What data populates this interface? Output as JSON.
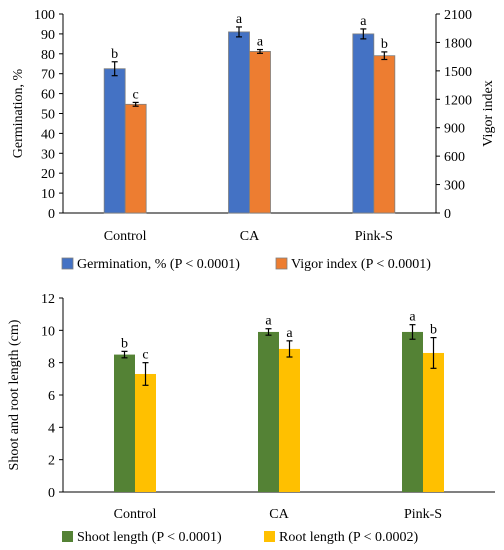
{
  "chart_data": [
    {
      "type": "bar",
      "categories": [
        "Control",
        "CA",
        "Pink-S"
      ],
      "ylabel": "Germination, %",
      "y2label": "Vigor index",
      "ylim": [
        0,
        100
      ],
      "y2lim": [
        0,
        2100
      ],
      "yticks": [
        "0",
        "10",
        "20",
        "30",
        "40",
        "50",
        "60",
        "70",
        "80",
        "90",
        "100"
      ],
      "y2ticks": [
        "0",
        "300",
        "600",
        "900",
        "1200",
        "1500",
        "1800",
        "2100"
      ],
      "series": [
        {
          "name": "Germination, % (P < 0.0001)",
          "axis": "left",
          "color": "#4472C4",
          "values": [
            72.5,
            91,
            90
          ],
          "errors": [
            3.5,
            2.5,
            2.5
          ],
          "letters": [
            "b",
            "a",
            "a"
          ]
        },
        {
          "name": "Vigor index (P < 0.0001)",
          "axis": "right",
          "color": "#ED7D31",
          "values": [
            1147,
            1705,
            1660
          ],
          "errors": [
            20,
            20,
            40
          ],
          "letters": [
            "c",
            "a",
            "b"
          ]
        }
      ],
      "legend_position": "bottom"
    },
    {
      "type": "bar",
      "categories": [
        "Control",
        "CA",
        "Pink-S"
      ],
      "ylabel": "Shoot and root length (cm)",
      "ylim": [
        0,
        12
      ],
      "yticks": [
        "0",
        "2",
        "4",
        "6",
        "8",
        "10",
        "12"
      ],
      "series": [
        {
          "name": "Shoot length (P < 0.0001)",
          "color": "#548235",
          "values": [
            8.5,
            9.9,
            9.9
          ],
          "errors": [
            0.2,
            0.2,
            0.45
          ],
          "letters": [
            "b",
            "a",
            "a"
          ]
        },
        {
          "name": "Root length (P < 0.0002)",
          "color": "#FFC000",
          "values": [
            7.3,
            8.85,
            8.6
          ],
          "errors": [
            0.7,
            0.5,
            0.95
          ],
          "letters": [
            "c",
            "a",
            "b"
          ]
        }
      ],
      "legend_position": "bottom"
    }
  ]
}
